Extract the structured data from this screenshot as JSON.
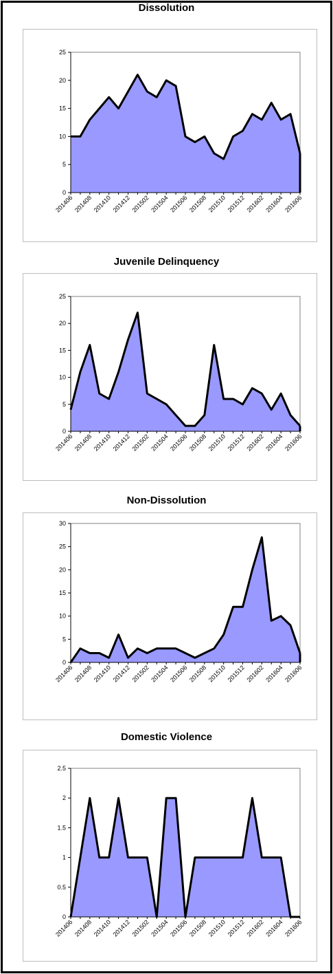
{
  "chart_data": [
    {
      "type": "area",
      "title": "Dissolution",
      "x": [
        "201406",
        "201407",
        "201408",
        "201409",
        "201410",
        "201411",
        "201412",
        "201501",
        "201502",
        "201503",
        "201504",
        "201505",
        "201506",
        "201507",
        "201508",
        "201509",
        "201510",
        "201511",
        "201512",
        "201601",
        "201602",
        "201603",
        "201604",
        "201605",
        "201606"
      ],
      "xtick_labels": [
        "201406",
        "201408",
        "201410",
        "201412",
        "201502",
        "201504",
        "201506",
        "201508",
        "201510",
        "201512",
        "201602",
        "201604",
        "201606"
      ],
      "values": [
        10,
        10,
        13,
        15,
        17,
        15,
        18,
        21,
        18,
        17,
        20,
        19,
        10,
        9,
        10,
        7,
        6,
        10,
        11,
        14,
        13,
        16,
        13,
        14,
        7
      ],
      "ylim": [
        0,
        25
      ],
      "yticks": [
        "0",
        "5",
        "10",
        "15",
        "20",
        "25"
      ],
      "grid": false,
      "colors": {
        "fill": "#9999ff",
        "line": "#000000"
      }
    },
    {
      "type": "area",
      "title": "Juvenile Delinquency",
      "x": [
        "201406",
        "201407",
        "201408",
        "201409",
        "201410",
        "201411",
        "201412",
        "201501",
        "201502",
        "201503",
        "201504",
        "201505",
        "201506",
        "201507",
        "201508",
        "201509",
        "201510",
        "201511",
        "201512",
        "201601",
        "201602",
        "201603",
        "201604",
        "201605",
        "201606"
      ],
      "xtick_labels": [
        "201406",
        "201408",
        "201410",
        "201412",
        "201502",
        "201504",
        "201506",
        "201508",
        "201510",
        "201512",
        "201602",
        "201604",
        "201606"
      ],
      "values": [
        4,
        11,
        16,
        7,
        6,
        11,
        17,
        22,
        7,
        6,
        5,
        3,
        1,
        1,
        3,
        16,
        6,
        6,
        5,
        8,
        7,
        4,
        7,
        3,
        1
      ],
      "ylim": [
        0,
        25
      ],
      "yticks": [
        "0",
        "5",
        "10",
        "15",
        "20",
        "25"
      ],
      "grid": false,
      "colors": {
        "fill": "#9999ff",
        "line": "#000000"
      }
    },
    {
      "type": "area",
      "title": "Non-Dissolution",
      "x": [
        "201406",
        "201407",
        "201408",
        "201409",
        "201410",
        "201411",
        "201412",
        "201501",
        "201502",
        "201503",
        "201504",
        "201505",
        "201506",
        "201507",
        "201508",
        "201509",
        "201510",
        "201511",
        "201512",
        "201601",
        "201602",
        "201603",
        "201604",
        "201605",
        "201606"
      ],
      "xtick_labels": [
        "201406",
        "201408",
        "201410",
        "201412",
        "201502",
        "201504",
        "201506",
        "201508",
        "201510",
        "201512",
        "201602",
        "201604",
        "201606"
      ],
      "values": [
        0,
        3,
        2,
        2,
        1,
        6,
        1,
        3,
        2,
        3,
        3,
        3,
        2,
        1,
        2,
        3,
        6,
        12,
        12,
        20,
        27,
        9,
        10,
        8,
        2
      ],
      "ylim": [
        0,
        30
      ],
      "yticks": [
        "0",
        "5",
        "10",
        "15",
        "20",
        "25",
        "30"
      ],
      "grid": false,
      "colors": {
        "fill": "#9999ff",
        "line": "#000000"
      }
    },
    {
      "type": "area",
      "title": "Domestic Violence",
      "x": [
        "201406",
        "201407",
        "201408",
        "201409",
        "201410",
        "201411",
        "201412",
        "201501",
        "201502",
        "201503",
        "201504",
        "201505",
        "201506",
        "201507",
        "201508",
        "201509",
        "201510",
        "201511",
        "201512",
        "201601",
        "201602",
        "201603",
        "201604",
        "201605",
        "201606"
      ],
      "xtick_labels": [
        "201406",
        "201408",
        "201410",
        "201412",
        "201502",
        "201504",
        "201506",
        "201508",
        "201510",
        "201512",
        "201602",
        "201604",
        "201606"
      ],
      "values": [
        0,
        1,
        2,
        1,
        1,
        2,
        1,
        1,
        1,
        0,
        2,
        2,
        0,
        1,
        1,
        1,
        1,
        1,
        1,
        2,
        1,
        1,
        1,
        0,
        0
      ],
      "ylim": [
        0,
        2.5
      ],
      "yticks": [
        "0",
        "0.5",
        "1",
        "1.5",
        "2",
        "2.5"
      ],
      "grid": false,
      "colors": {
        "fill": "#9999ff",
        "line": "#000000"
      }
    }
  ]
}
